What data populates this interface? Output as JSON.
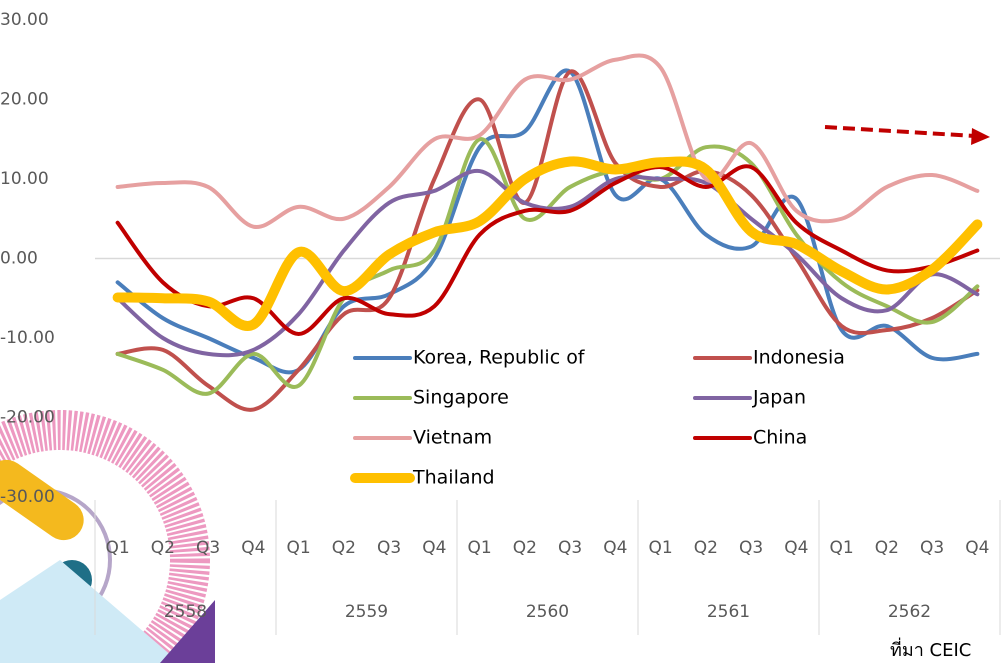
{
  "chart_data": {
    "type": "line",
    "categories": [
      "Q1",
      "Q2",
      "Q3",
      "Q4",
      "Q1",
      "Q2",
      "Q3",
      "Q4",
      "Q1",
      "Q2",
      "Q3",
      "Q4",
      "Q1",
      "Q2",
      "Q3",
      "Q4",
      "Q1",
      "Q2",
      "Q3",
      "Q4"
    ],
    "groups": [
      "2558",
      "2559",
      "2560",
      "2561",
      "2562"
    ],
    "ylim": [
      -30,
      30
    ],
    "yticks": [
      {
        "value": -30,
        "label": "-30.00"
      },
      {
        "value": -20,
        "label": "-20.00"
      },
      {
        "value": -10,
        "label": "-10.00"
      },
      {
        "value": 0,
        "label": "0.00"
      },
      {
        "value": 10,
        "label": "10.00"
      },
      {
        "value": 20,
        "label": "20.00"
      },
      {
        "value": 30,
        "label": "30.00"
      }
    ],
    "grid": false,
    "series": [
      {
        "name": "Korea, Republic of",
        "color": "#4a7ebb",
        "values": [
          -3,
          -7.5,
          -10,
          -12.5,
          -14,
          -6,
          -4.5,
          0,
          14,
          16,
          23.5,
          8,
          10,
          3,
          1.5,
          7.5,
          -9,
          -8.5,
          -12.5,
          -12
        ]
      },
      {
        "name": "Indonesia",
        "color": "#c0504d",
        "values": [
          -12,
          -11.5,
          -16,
          -19,
          -14,
          -7,
          -5,
          10,
          20,
          7,
          23.5,
          12,
          9,
          11,
          8,
          0,
          -8.5,
          -9,
          -7.5,
          -4
        ]
      },
      {
        "name": "Singapore",
        "color": "#9bbb59",
        "values": [
          -12,
          -14,
          -17,
          -12,
          -16,
          -5,
          -1.5,
          1,
          15,
          5,
          9,
          11,
          10,
          14,
          12,
          3,
          -3,
          -6,
          -8,
          -3.5
        ]
      },
      {
        "name": "Japan",
        "color": "#8064a2",
        "values": [
          -5,
          -10,
          -12,
          -11.5,
          -7,
          1,
          7,
          8.5,
          11,
          7,
          6.5,
          10,
          10,
          9.5,
          5,
          0.5,
          -5,
          -6.5,
          -2,
          -4.5
        ]
      },
      {
        "name": "Vietnam",
        "color": "#e6a0a0",
        "values": [
          9,
          9.5,
          9,
          4,
          6.5,
          5,
          9,
          15,
          15.5,
          22.5,
          22.5,
          25,
          24,
          10,
          14.5,
          6,
          5,
          9,
          10.5,
          8.5
        ]
      },
      {
        "name": "China",
        "color": "#c00000",
        "values": [
          4.5,
          -3,
          -6,
          -5,
          -9.5,
          -5,
          -7,
          -6,
          3,
          6,
          6,
          9.5,
          11.5,
          9,
          11.5,
          4.5,
          1,
          -1.5,
          -1,
          1
        ]
      },
      {
        "name": "Thailand",
        "color": "#ffc000",
        "values": [
          -4.9,
          -5,
          -5.4,
          -8.3,
          0.8,
          -4.1,
          0.5,
          3.3,
          4.7,
          10,
          12.2,
          11.2,
          12.1,
          11.2,
          3.4,
          1.8,
          -1.6,
          -3.9,
          -1.4,
          4.3
        ]
      }
    ],
    "source": "ที่มา CEIC"
  }
}
